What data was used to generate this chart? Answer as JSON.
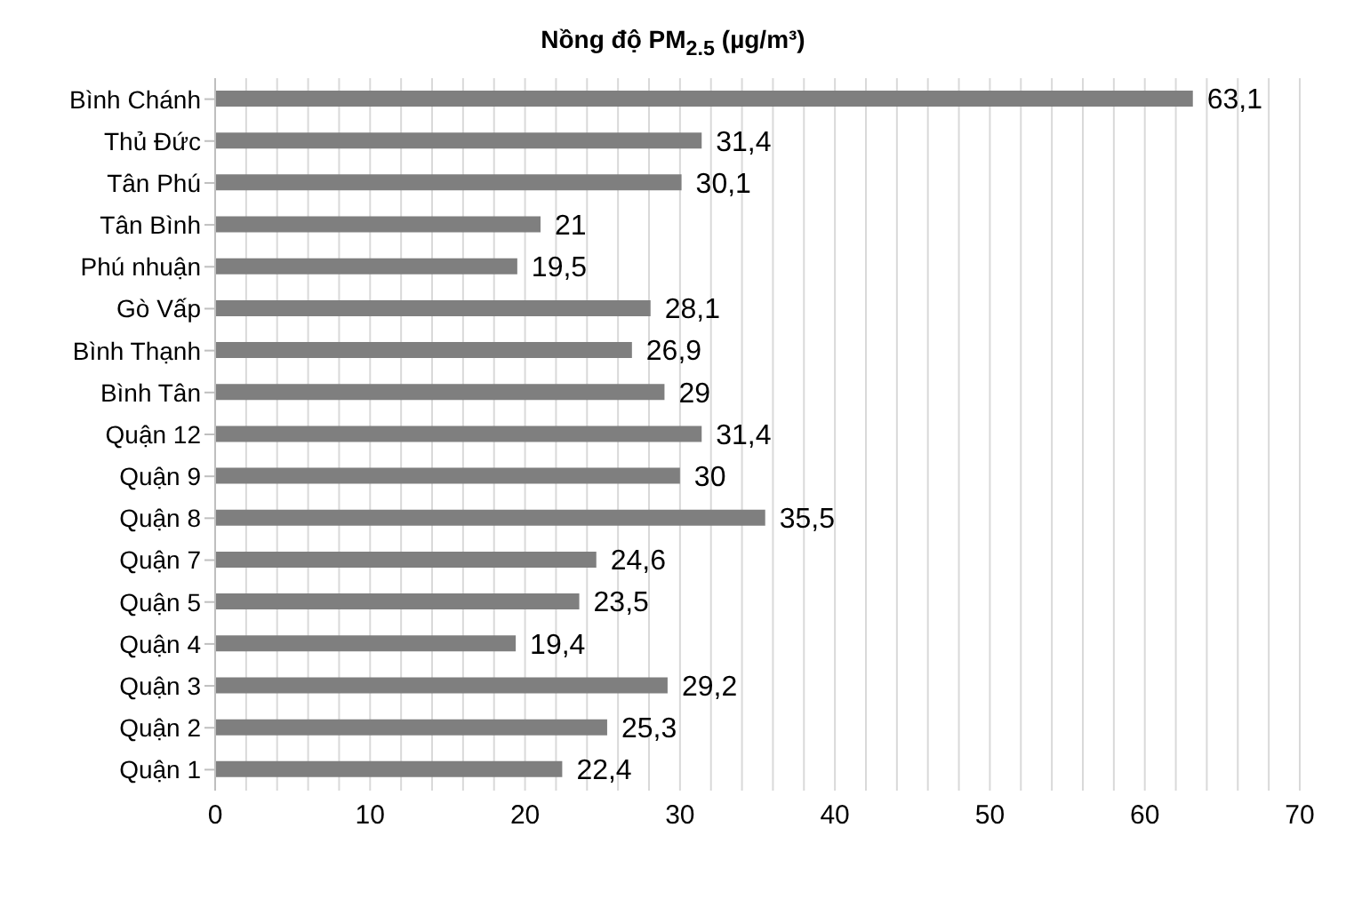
{
  "chart_data": {
    "type": "bar",
    "orientation": "horizontal",
    "title": "Nồng độ PM$_{2.5}$ (µg/m³)",
    "categories": [
      "Bình Chánh",
      "Thủ Đức",
      "Tân Phú",
      "Tân Bình",
      "Phú nhuận",
      "Gò Vấp",
      "Bình Thạnh",
      "Bình Tân",
      "Quận 12",
      "Quận 9",
      "Quận 8",
      "Quận 7",
      "Quận 5",
      "Quận 4",
      "Quận 3",
      "Quận 2",
      "Quận 1"
    ],
    "values": [
      63.1,
      31.4,
      30.1,
      21,
      19.5,
      28.1,
      26.9,
      29,
      31.4,
      30,
      35.5,
      24.6,
      23.5,
      19.4,
      29.2,
      25.3,
      22.4
    ],
    "value_labels": [
      "63,1",
      "31,4",
      "30,1",
      "21",
      "19,5",
      "28,1",
      "26,9",
      "29",
      "31,4",
      "30",
      "35,5",
      "24,6",
      "23,5",
      "19,4",
      "29,2",
      "25,3",
      "22,4"
    ],
    "color": "#7f7f7f",
    "xlim": [
      0,
      70
    ],
    "xticks": [
      0,
      {
        "value": 2,
        "label": null
      },
      {
        "value": 4,
        "label": null
      },
      {
        "value": 6,
        "label": null
      },
      {
        "value": 8,
        "label": null
      },
      10,
      {
        "value": 12,
        "label": null
      },
      {
        "value": 14,
        "label": null
      },
      {
        "value": 16,
        "label": null
      },
      {
        "value": 18,
        "label": null
      },
      20,
      {
        "value": 22,
        "label": null
      },
      {
        "value": 24,
        "label": null
      },
      {
        "value": 26,
        "label": null
      },
      {
        "value": 28,
        "label": null
      },
      30,
      {
        "value": 32,
        "label": null
      },
      {
        "value": 34,
        "label": null
      },
      {
        "value": 36,
        "label": null
      },
      {
        "value": 38,
        "label": null
      },
      40,
      {
        "value": 42,
        "label": null
      },
      {
        "value": 44,
        "label": null
      },
      {
        "value": 46,
        "label": null
      },
      {
        "value": 48,
        "label": null
      },
      50,
      {
        "value": 52,
        "label": null
      },
      {
        "value": 54,
        "label": null
      },
      {
        "value": 56,
        "label": null
      },
      {
        "value": 58,
        "label": null
      },
      60,
      {
        "value": 62,
        "label": null
      },
      {
        "value": 64,
        "label": null
      },
      {
        "value": 66,
        "label": null
      },
      {
        "value": 68,
        "label": null
      },
      70
    ],
    "grid": "x"
  }
}
